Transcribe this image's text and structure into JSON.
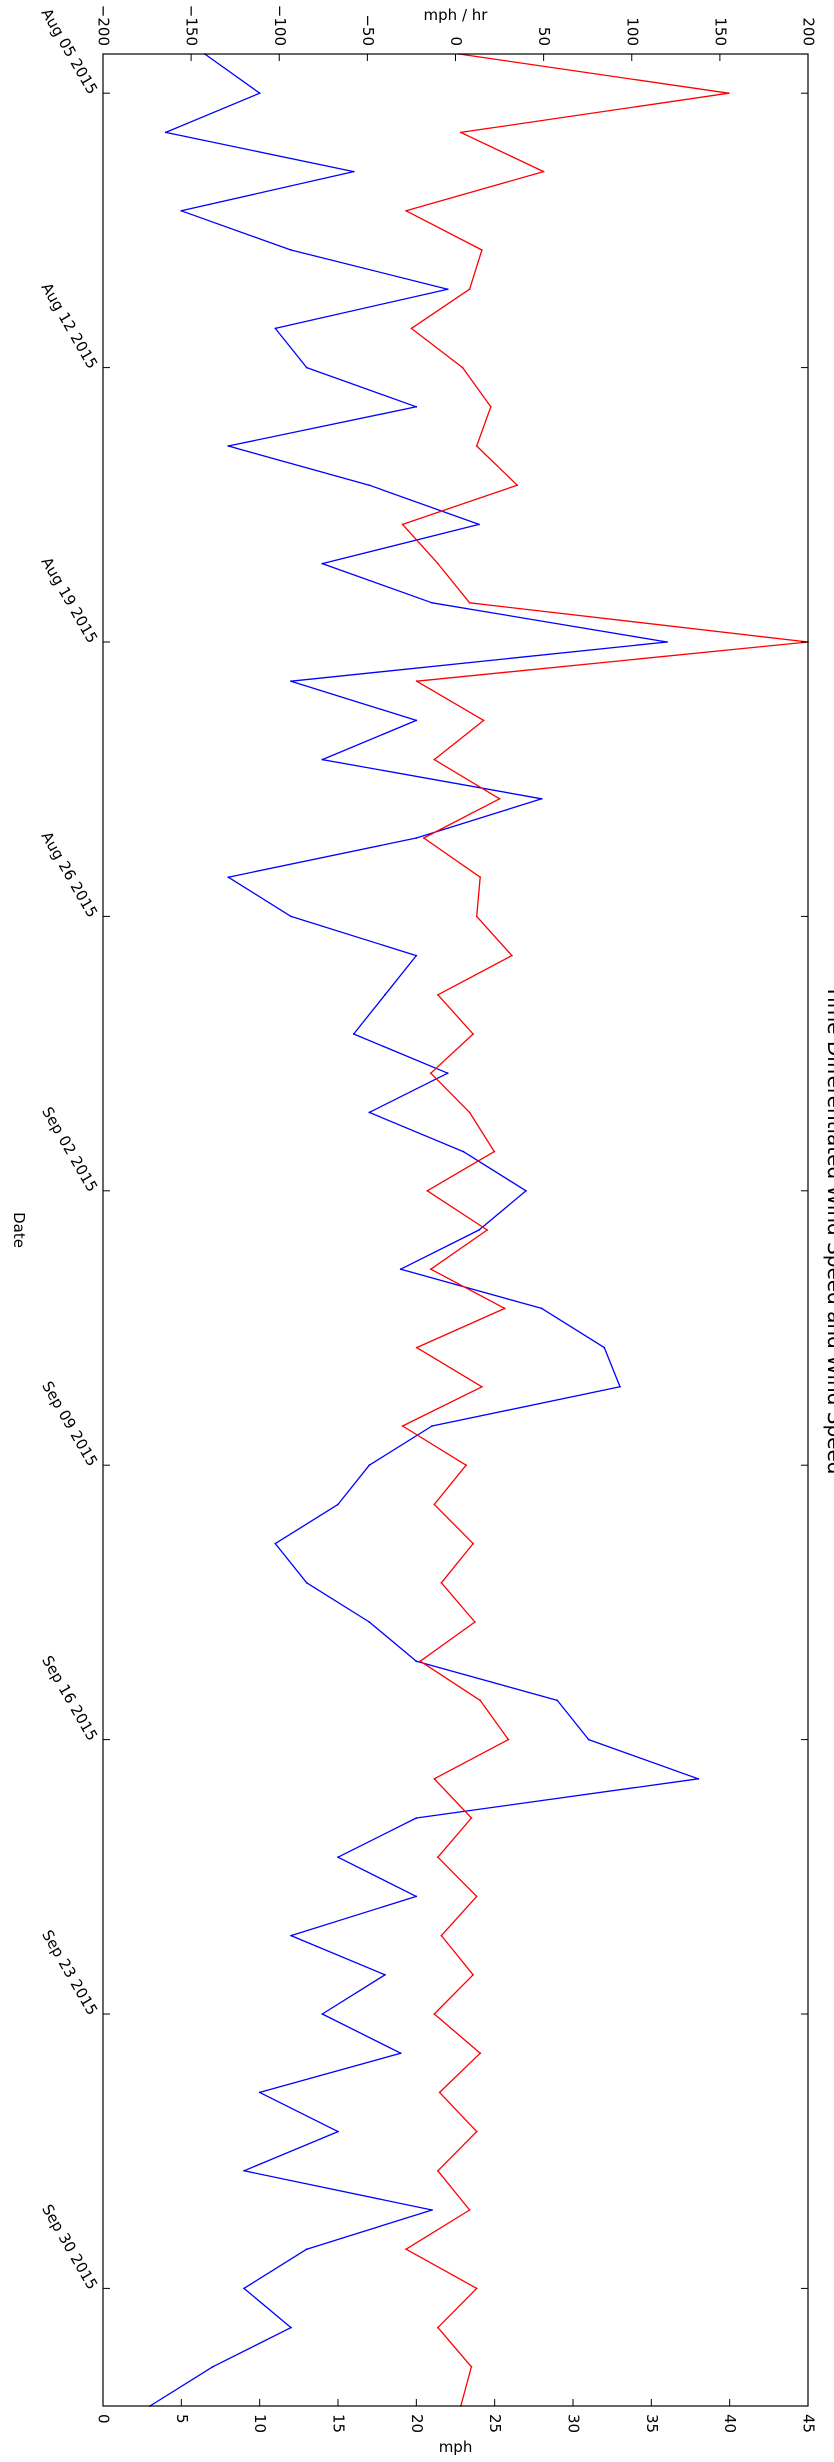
{
  "chart_data": {
    "type": "line",
    "title": "Time Differentiated Wind Speed and Wind Speed",
    "date_axis": {
      "label": "Date",
      "ticks": [
        "Aug 05 2015",
        "Aug 12 2015",
        "Aug 19 2015",
        "Aug 26 2015",
        "Sep 02 2015",
        "Sep 09 2015",
        "Sep 16 2015",
        "Sep 23 2015",
        "Sep 30 2015"
      ],
      "range": [
        "2015-08-04",
        "2015-10-03"
      ]
    },
    "rate_axis": {
      "label": "mph / hr",
      "ticks": [
        "−200",
        "−150",
        "−100",
        "−50",
        "0",
        "50",
        "100",
        "150",
        "200"
      ],
      "range": [
        -200,
        200
      ],
      "position": "top"
    },
    "speed_axis": {
      "label": "mph",
      "ticks": [
        "0",
        "5",
        "10",
        "15",
        "20",
        "25",
        "30",
        "35",
        "40",
        "45"
      ],
      "range": [
        0,
        45
      ],
      "position": "bottom"
    },
    "orientation": "rotated: date runs top-to-bottom, values run left-to-right",
    "grid": false,
    "series": [
      {
        "color": "#0000ff",
        "axis": "speed",
        "points": [
          [
            "2015-08-04",
            6.5
          ],
          [
            "2015-08-05",
            10
          ],
          [
            "2015-08-06",
            4
          ],
          [
            "2015-08-07",
            16
          ],
          [
            "2015-08-08",
            5
          ],
          [
            "2015-08-09",
            12
          ],
          [
            "2015-08-10",
            22
          ],
          [
            "2015-08-11",
            11
          ],
          [
            "2015-08-12",
            13
          ],
          [
            "2015-08-13",
            20
          ],
          [
            "2015-08-14",
            8
          ],
          [
            "2015-08-15",
            17
          ],
          [
            "2015-08-16",
            24
          ],
          [
            "2015-08-17",
            14
          ],
          [
            "2015-08-18",
            21
          ],
          [
            "2015-08-19",
            36
          ],
          [
            "2015-08-20",
            12
          ],
          [
            "2015-08-21",
            20
          ],
          [
            "2015-08-22",
            14
          ],
          [
            "2015-08-23",
            28
          ],
          [
            "2015-08-24",
            20
          ],
          [
            "2015-08-25",
            8
          ],
          [
            "2015-08-26",
            12
          ],
          [
            "2015-08-27",
            20
          ],
          [
            "2015-08-28",
            18
          ],
          [
            "2015-08-29",
            16
          ],
          [
            "2015-08-30",
            22
          ],
          [
            "2015-08-31",
            17
          ],
          [
            "2015-09-01",
            23
          ],
          [
            "2015-09-02",
            27
          ],
          [
            "2015-09-03",
            24
          ],
          [
            "2015-09-04",
            19
          ],
          [
            "2015-09-05",
            28
          ],
          [
            "2015-09-06",
            32
          ],
          [
            "2015-09-07",
            33
          ],
          [
            "2015-09-08",
            21
          ],
          [
            "2015-09-09",
            17
          ],
          [
            "2015-09-10",
            15
          ],
          [
            "2015-09-11",
            11
          ],
          [
            "2015-09-12",
            13
          ],
          [
            "2015-09-13",
            17
          ],
          [
            "2015-09-14",
            20
          ],
          [
            "2015-09-15",
            29
          ],
          [
            "2015-09-16",
            31
          ],
          [
            "2015-09-17",
            38
          ],
          [
            "2015-09-18",
            20
          ],
          [
            "2015-09-19",
            15
          ],
          [
            "2015-09-20",
            20
          ],
          [
            "2015-09-21",
            12
          ],
          [
            "2015-09-22",
            18
          ],
          [
            "2015-09-23",
            14
          ],
          [
            "2015-09-24",
            19
          ],
          [
            "2015-09-25",
            10
          ],
          [
            "2015-09-26",
            15
          ],
          [
            "2015-09-27",
            9
          ],
          [
            "2015-09-28",
            21
          ],
          [
            "2015-09-29",
            13
          ],
          [
            "2015-09-30",
            9
          ],
          [
            "2015-10-01",
            12
          ],
          [
            "2015-10-02",
            7
          ],
          [
            "2015-10-03",
            3
          ]
        ]
      },
      {
        "color": "#ff0000",
        "axis": "rate",
        "points": [
          [
            "2015-08-04",
            2
          ],
          [
            "2015-08-05",
            155
          ],
          [
            "2015-08-06",
            3
          ],
          [
            "2015-08-07",
            50
          ],
          [
            "2015-08-08",
            -28
          ],
          [
            "2015-08-09",
            15
          ],
          [
            "2015-08-10",
            8
          ],
          [
            "2015-08-11",
            -25
          ],
          [
            "2015-08-12",
            4
          ],
          [
            "2015-08-13",
            20
          ],
          [
            "2015-08-14",
            12
          ],
          [
            "2015-08-15",
            35
          ],
          [
            "2015-08-16",
            -30
          ],
          [
            "2015-08-17",
            -10
          ],
          [
            "2015-08-18",
            8
          ],
          [
            "2015-08-19",
            200
          ],
          [
            "2015-08-20",
            -22
          ],
          [
            "2015-08-21",
            16
          ],
          [
            "2015-08-22",
            -12
          ],
          [
            "2015-08-23",
            25
          ],
          [
            "2015-08-24",
            -18
          ],
          [
            "2015-08-25",
            14
          ],
          [
            "2015-08-26",
            12
          ],
          [
            "2015-08-27",
            32
          ],
          [
            "2015-08-28",
            -10
          ],
          [
            "2015-08-29",
            10
          ],
          [
            "2015-08-30",
            -14
          ],
          [
            "2015-08-31",
            8
          ],
          [
            "2015-09-01",
            22
          ],
          [
            "2015-09-02",
            -16
          ],
          [
            "2015-09-03",
            18
          ],
          [
            "2015-09-04",
            -14
          ],
          [
            "2015-09-05",
            28
          ],
          [
            "2015-09-06",
            -22
          ],
          [
            "2015-09-07",
            15
          ],
          [
            "2015-09-08",
            -30
          ],
          [
            "2015-09-09",
            6
          ],
          [
            "2015-09-10",
            -12
          ],
          [
            "2015-09-11",
            10
          ],
          [
            "2015-09-12",
            -8
          ],
          [
            "2015-09-13",
            11
          ],
          [
            "2015-09-14",
            -20
          ],
          [
            "2015-09-15",
            14
          ],
          [
            "2015-09-16",
            30
          ],
          [
            "2015-09-17",
            -12
          ],
          [
            "2015-09-18",
            9
          ],
          [
            "2015-09-19",
            -10
          ],
          [
            "2015-09-20",
            12
          ],
          [
            "2015-09-21",
            -8
          ],
          [
            "2015-09-22",
            10
          ],
          [
            "2015-09-23",
            -12
          ],
          [
            "2015-09-24",
            14
          ],
          [
            "2015-09-25",
            -9
          ],
          [
            "2015-09-26",
            12
          ],
          [
            "2015-09-27",
            -10
          ],
          [
            "2015-09-28",
            8
          ],
          [
            "2015-09-29",
            -28
          ],
          [
            "2015-09-30",
            12
          ],
          [
            "2015-10-01",
            -10
          ],
          [
            "2015-10-02",
            9
          ],
          [
            "2015-10-03",
            3
          ]
        ]
      }
    ]
  }
}
